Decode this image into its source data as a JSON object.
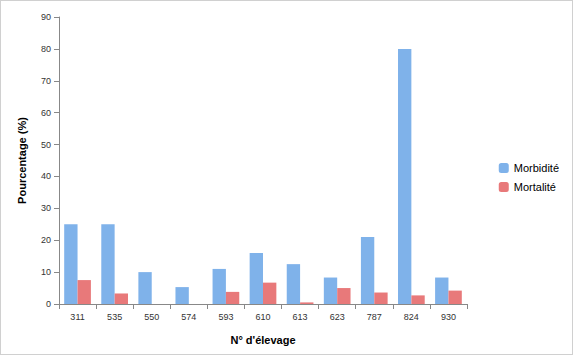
{
  "chart_data": {
    "type": "bar",
    "x_label": "N° d'élevage",
    "y_label": "Pourcentage (%)",
    "categories": [
      "311",
      "535",
      "550",
      "574",
      "593",
      "610",
      "613",
      "623",
      "787",
      "824",
      "930"
    ],
    "series": [
      {
        "name": "Morbidité",
        "color": "#7fb2ea",
        "values": [
          25,
          25,
          10,
          5.3,
          11,
          16,
          12.5,
          8.3,
          21,
          80,
          8.3
        ]
      },
      {
        "name": "Mortalité",
        "color": "#e8797a",
        "values": [
          7.5,
          3.3,
          0,
          0,
          3.8,
          6.7,
          0.5,
          5,
          3.6,
          2.7,
          4.2
        ]
      }
    ],
    "ylim": [
      0,
      90
    ],
    "yticks": [
      0,
      10,
      20,
      30,
      40,
      50,
      60,
      70,
      80,
      90
    ],
    "grid": false,
    "legend": "right"
  }
}
